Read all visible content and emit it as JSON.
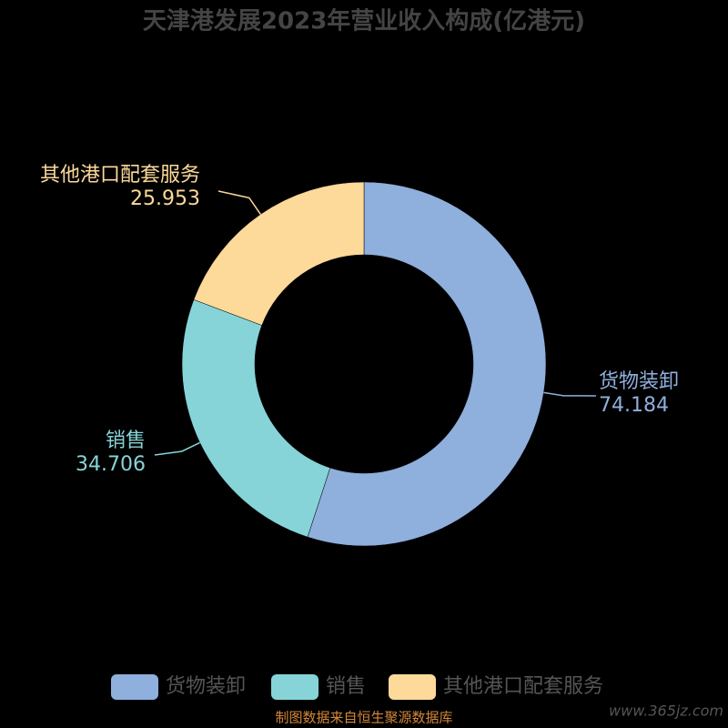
{
  "chart_data": {
    "type": "donut",
    "title": "天津港发展2023年营业收入构成(亿港元)",
    "categories": [
      "货物装卸",
      "销售",
      "其他港口配套服务"
    ],
    "values": [
      74.184,
      34.706,
      25.953
    ],
    "colors": [
      "#8fafdc",
      "#86d4d8",
      "#fdd99a"
    ],
    "legend": "bottom",
    "source": "制图数据来自恒生聚源数据库",
    "watermark": "www.365jz.com"
  }
}
